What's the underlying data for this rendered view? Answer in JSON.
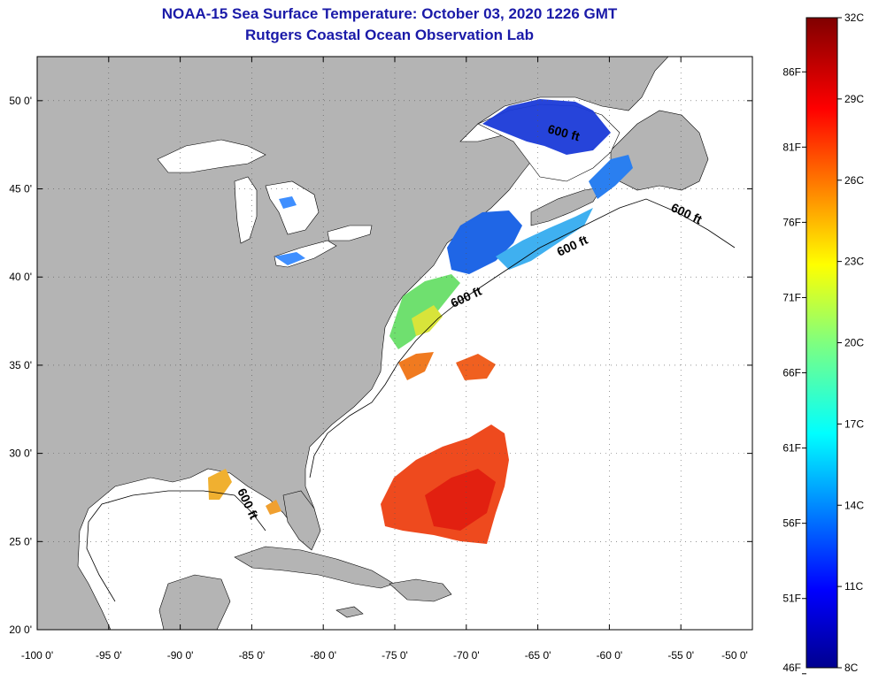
{
  "title": "NOAA-15 Sea Surface Temperature:  October 03, 2020 1226 GMT",
  "subtitle": "Rutgers Coastal Ocean Observation Lab",
  "axes": {
    "lon_labels": [
      "-100 0'",
      "-95 0'",
      "-90 0'",
      "-85 0'",
      "-80 0'",
      "-75 0'",
      "-70 0'",
      "-65 0'",
      "-60 0'",
      "-55 0'",
      "-50 0'"
    ],
    "lon_values": [
      -100,
      -95,
      -90,
      -85,
      -80,
      -75,
      -70,
      -65,
      -60,
      -55,
      -50
    ],
    "lat_labels": [
      "50 0'",
      "45 0'",
      "40 0'",
      "35 0'",
      "30 0'",
      "25 0'",
      "20 0'"
    ],
    "lat_values": [
      50,
      45,
      40,
      35,
      30,
      25,
      20
    ],
    "lon_range": [
      -100,
      -50
    ],
    "lat_range": [
      20,
      52.5
    ]
  },
  "contours": [
    {
      "label": "600 ft"
    },
    {
      "label": "600 ft"
    },
    {
      "label": "600 ft"
    },
    {
      "label": "600 ft"
    },
    {
      "label": "600 ft"
    }
  ],
  "colorbar": {
    "celsius_labels": [
      "32C",
      "29C",
      "26C",
      "23C",
      "20C",
      "17C",
      "14C",
      "11C",
      "8C"
    ],
    "celsius_values": [
      32,
      29,
      26,
      23,
      20,
      17,
      14,
      11,
      8
    ],
    "fahrenheit_labels": [
      "86F",
      "81F",
      "76F",
      "71F",
      "66F",
      "61F",
      "56F",
      "51F",
      "46F"
    ],
    "fahrenheit_values": [
      86,
      81,
      76,
      71,
      66,
      61,
      56,
      51,
      46
    ],
    "range_c": [
      8,
      32
    ]
  },
  "colors": {
    "land": "#b4b4b4",
    "ocean": "#ffffff",
    "title": "#1a1aa8"
  }
}
